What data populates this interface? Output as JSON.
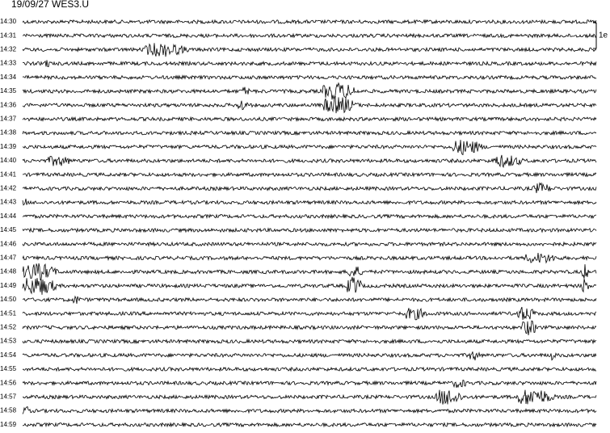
{
  "header": {
    "title": "19/09/27 WES3.U"
  },
  "scale": {
    "label": "1e"
  },
  "rows": [
    "14:30",
    "14:31",
    "14:32",
    "14:33",
    "14:34",
    "14:35",
    "14:36",
    "14:37",
    "14:38",
    "14:39",
    "14:40",
    "14:41",
    "14:42",
    "14:43",
    "14:44",
    "14:45",
    "14:46",
    "14:47",
    "14:48",
    "14:49",
    "14:50",
    "14:51",
    "14:52",
    "14:53",
    "14:54",
    "14:55",
    "14:56",
    "14:57",
    "14:58",
    "14:59"
  ]
}
